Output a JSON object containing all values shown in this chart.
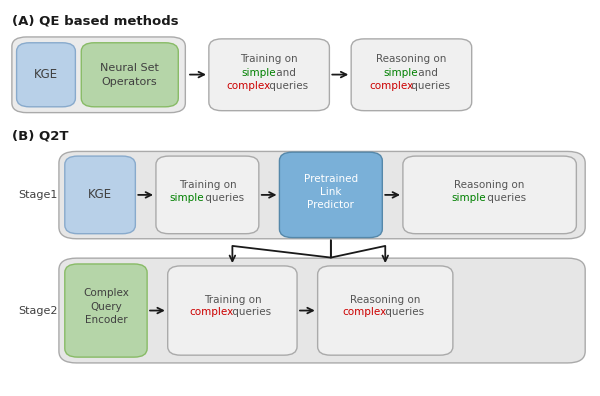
{
  "title_A": "(A) QE based methods",
  "title_B": "(B) Q2T",
  "stage1_label": "Stage1",
  "stage2_label": "Stage2",
  "bg_color": "#ffffff",
  "box_gray_bg": "#ebebeb",
  "box_blue_bg": "#b8d0e8",
  "box_green_bg": "#b5d5a8",
  "box_blue2_bg": "#7ab0d8",
  "group_bg": "#e4e4e4",
  "arrow_color": "#1a1a1a",
  "text_dark": "#555555",
  "text_green": "#008000",
  "text_red": "#cc0000",
  "text_black": "#1a1a1a"
}
